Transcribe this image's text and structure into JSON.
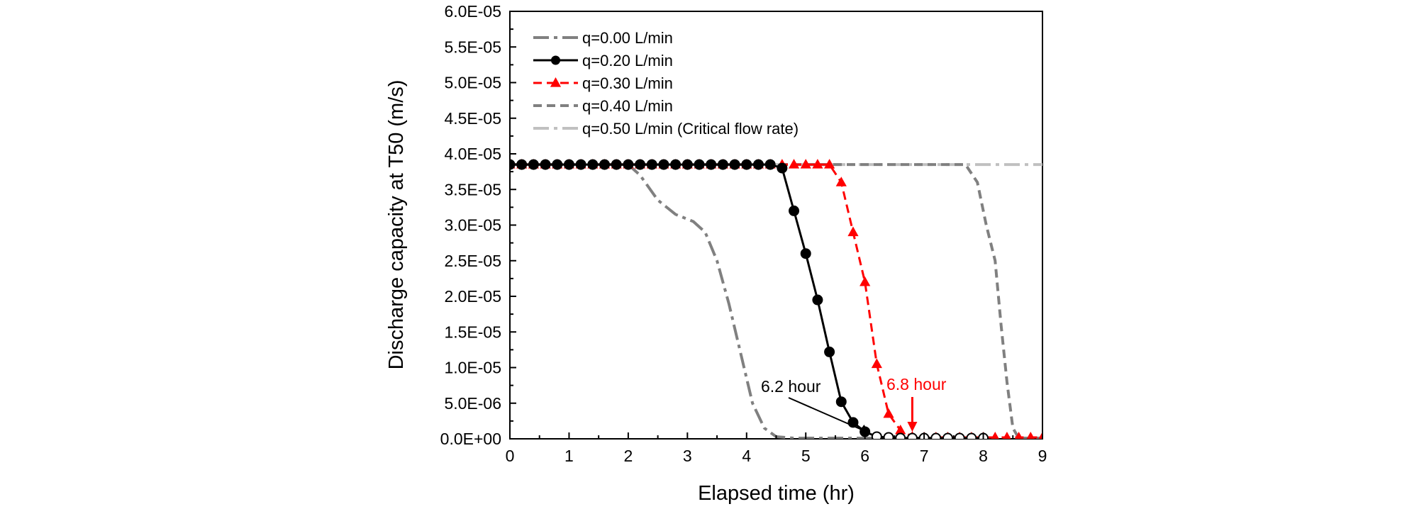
{
  "chart_data": {
    "type": "line",
    "title": "",
    "xlabel": "Elapsed time (hr)",
    "ylabel": "Discharge capacity at T50 (m/s)",
    "xlim": [
      0,
      9
    ],
    "ylim": [
      0,
      6e-05
    ],
    "x_ticks": [
      0,
      1,
      2,
      3,
      4,
      5,
      6,
      7,
      8,
      9
    ],
    "x_tick_labels": [
      "0",
      "1",
      "2",
      "3",
      "4",
      "5",
      "6",
      "7",
      "8",
      "9"
    ],
    "y_ticks": [
      0,
      5e-06,
      1e-05,
      1.5e-05,
      2e-05,
      2.5e-05,
      3e-05,
      3.5e-05,
      4e-05,
      4.5e-05,
      5e-05,
      5.5e-05,
      6e-05
    ],
    "y_tick_labels": [
      "0.0E+00",
      "5.0E-06",
      "1.0E-05",
      "1.5E-05",
      "2.0E-05",
      "2.5E-05",
      "3.0E-05",
      "3.5E-05",
      "4.0E-05",
      "4.5E-05",
      "5.0E-05",
      "5.5E-05",
      "6.0E-05"
    ],
    "grid": false,
    "legend_position": "top-left",
    "series": [
      {
        "name": "q=0.00 L/min",
        "color": "#808080",
        "line_style": "dash-dot",
        "marker": "none",
        "x": [
          0,
          2.0,
          2.2,
          2.5,
          2.8,
          3.1,
          3.3,
          3.5,
          3.7,
          3.9,
          4.1,
          4.3,
          4.5,
          4.8,
          5.0,
          6.0,
          7.0,
          8.0
        ],
        "y": [
          3.85e-05,
          3.85e-05,
          3.7e-05,
          3.35e-05,
          3.15e-05,
          3.05e-05,
          2.9e-05,
          2.5e-05,
          1.9e-05,
          1.2e-05,
          5e-06,
          1.5e-06,
          3e-07,
          1e-07,
          1e-07,
          1e-07,
          1e-07,
          1e-07
        ]
      },
      {
        "name": "q=0.20 L/min",
        "color": "#000000",
        "line_style": "solid",
        "marker": "circle",
        "x": [
          0,
          0.2,
          0.4,
          0.6,
          0.8,
          1.0,
          1.2,
          1.4,
          1.6,
          1.8,
          2.0,
          2.2,
          2.4,
          2.6,
          2.8,
          3.0,
          3.2,
          3.4,
          3.6,
          3.8,
          4.0,
          4.2,
          4.4,
          4.6,
          4.8,
          5.0,
          5.2,
          5.4,
          5.6,
          5.8,
          6.0,
          6.2,
          6.4,
          6.6,
          6.8,
          7.0,
          7.2,
          7.4,
          7.6,
          7.8,
          8.0
        ],
        "y": [
          3.85e-05,
          3.85e-05,
          3.85e-05,
          3.85e-05,
          3.85e-05,
          3.85e-05,
          3.85e-05,
          3.85e-05,
          3.85e-05,
          3.85e-05,
          3.85e-05,
          3.85e-05,
          3.85e-05,
          3.85e-05,
          3.85e-05,
          3.85e-05,
          3.85e-05,
          3.85e-05,
          3.85e-05,
          3.85e-05,
          3.85e-05,
          3.85e-05,
          3.85e-05,
          3.8e-05,
          3.2e-05,
          2.6e-05,
          1.95e-05,
          1.22e-05,
          5.2e-06,
          2.3e-06,
          1e-06,
          3e-07,
          2e-07,
          1e-07,
          1e-07,
          1e-07,
          1e-07,
          1e-07,
          1e-07,
          1e-07,
          1e-07
        ],
        "open_marker_from_index": 31
      },
      {
        "name": "q=0.30 L/min",
        "color": "#ff0000",
        "line_style": "dashed",
        "marker": "triangle",
        "x": [
          0,
          0.2,
          0.4,
          0.6,
          0.8,
          1.0,
          1.2,
          1.4,
          1.6,
          1.8,
          2.0,
          2.2,
          2.4,
          2.6,
          2.8,
          3.0,
          3.2,
          3.4,
          3.6,
          3.8,
          4.0,
          4.2,
          4.4,
          4.6,
          4.8,
          5.0,
          5.2,
          5.4,
          5.6,
          5.8,
          6.0,
          6.2,
          6.4,
          6.6,
          6.8,
          7.0,
          7.2,
          7.4,
          7.6,
          7.8,
          8.0,
          8.2,
          8.4,
          8.6,
          8.8,
          9.0
        ],
        "y": [
          3.85e-05,
          3.85e-05,
          3.85e-05,
          3.85e-05,
          3.85e-05,
          3.85e-05,
          3.85e-05,
          3.85e-05,
          3.85e-05,
          3.85e-05,
          3.85e-05,
          3.85e-05,
          3.85e-05,
          3.85e-05,
          3.85e-05,
          3.85e-05,
          3.85e-05,
          3.85e-05,
          3.85e-05,
          3.85e-05,
          3.85e-05,
          3.85e-05,
          3.85e-05,
          3.85e-05,
          3.85e-05,
          3.85e-05,
          3.85e-05,
          3.85e-05,
          3.6e-05,
          2.9e-05,
          2.2e-05,
          1.05e-05,
          3.5e-06,
          1.2e-06,
          3e-07,
          2e-07,
          2e-07,
          2e-07,
          2e-07,
          2e-07,
          2e-07,
          2e-07,
          2e-07,
          2e-07,
          2e-07,
          2e-07
        ]
      },
      {
        "name": "q=0.40 L/min",
        "color": "#808080",
        "line_style": "dashed",
        "marker": "none",
        "x": [
          0,
          7.7,
          7.9,
          8.05,
          8.2,
          8.3,
          8.4,
          8.5,
          8.6,
          8.7,
          9.0
        ],
        "y": [
          3.85e-05,
          3.85e-05,
          3.6e-05,
          3e-05,
          2.5e-05,
          1.6e-05,
          8e-06,
          1.5e-06,
          1e-07,
          1e-07,
          1e-07
        ]
      },
      {
        "name": "q=0.50 L/min (Critical flow rate)",
        "color": "#c0c0c0",
        "line_style": "dash-dot",
        "marker": "none",
        "x": [
          0,
          9.0
        ],
        "y": [
          3.85e-05,
          3.85e-05
        ]
      }
    ],
    "annotations": [
      {
        "text": "6.2 hour",
        "color": "#000000",
        "target_x": 6.2,
        "target_y": 2e-07
      },
      {
        "text": "6.8 hour",
        "color": "#ff0000",
        "target_x": 6.8,
        "target_y": 2e-07
      }
    ]
  }
}
